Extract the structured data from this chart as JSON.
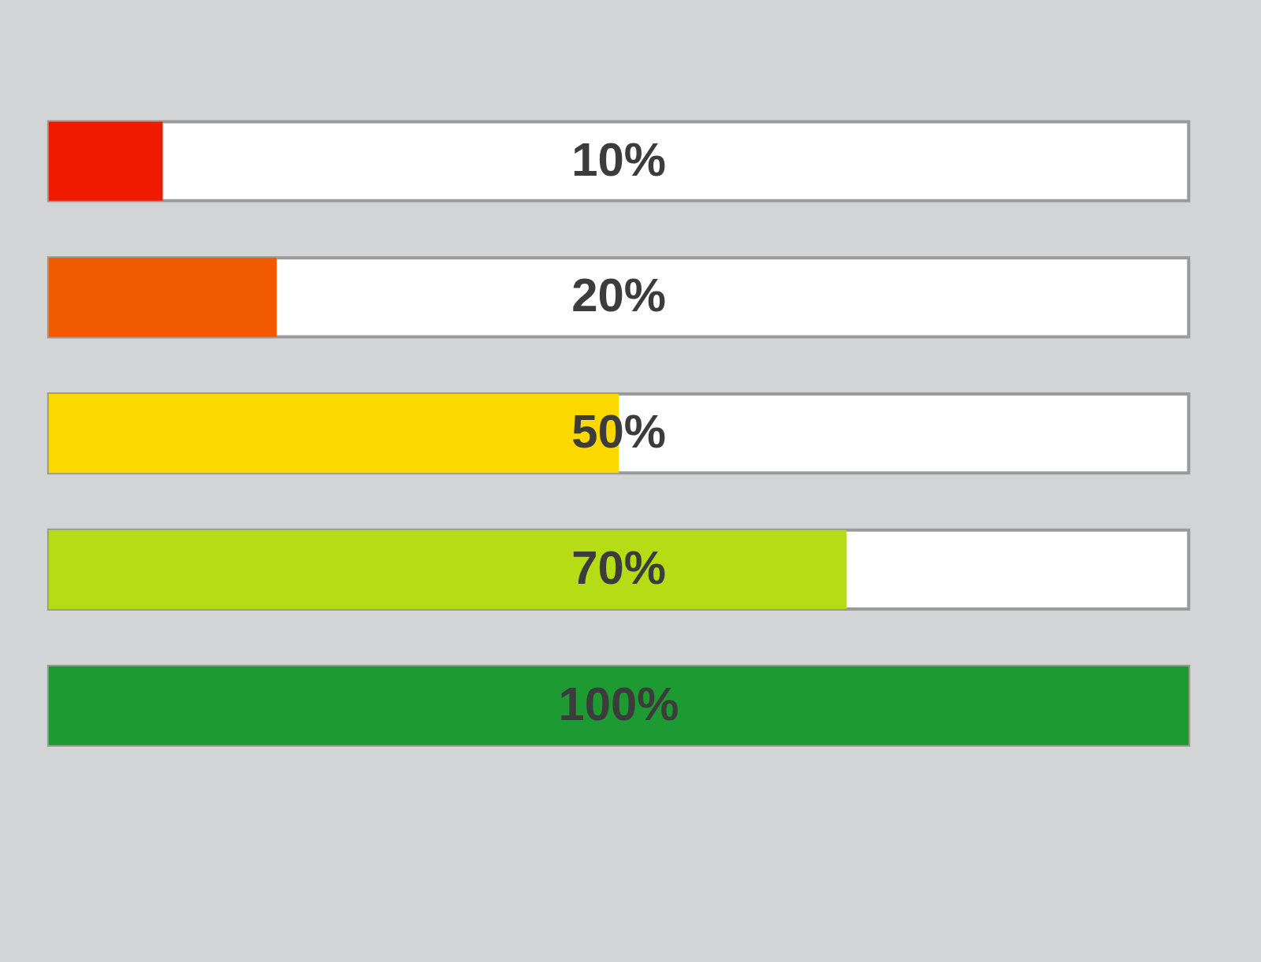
{
  "chart_data": {
    "type": "bar",
    "orientation": "horizontal",
    "categories": [
      null,
      null,
      null,
      null,
      null
    ],
    "values": [
      10,
      20,
      50,
      70,
      100
    ],
    "colors": [
      "#f01a00",
      "#f25a00",
      "#fbd800",
      "#b5dc14",
      "#1e9a32"
    ],
    "value_labels": [
      "10%",
      "20%",
      "50%",
      "70%",
      "100%"
    ],
    "xlim": [
      0,
      100
    ],
    "tick_labels": false
  }
}
